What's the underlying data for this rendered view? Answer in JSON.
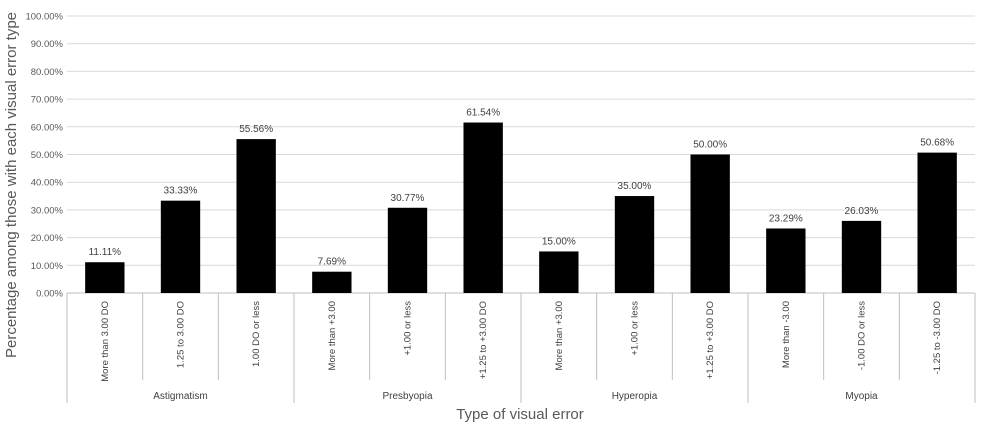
{
  "chart_data": {
    "type": "bar",
    "title": "",
    "xlabel": "Type of visual error",
    "ylabel": "Percentage among those with each visual error type",
    "ylim": [
      0,
      100
    ],
    "yticks": [
      "0.00%",
      "10.00%",
      "20.00%",
      "30.00%",
      "40.00%",
      "50.00%",
      "60.00%",
      "70.00%",
      "80.00%",
      "90.00%",
      "100.00%"
    ],
    "grid": true,
    "bar_color": "#000000",
    "groups": [
      {
        "label": "Astigmatism",
        "categories": [
          "More than 3.00 DO",
          "1.25 to 3.00 DO",
          "1.00 DO or less"
        ],
        "values": [
          11.11,
          33.33,
          55.56
        ],
        "labels": [
          "11.11%",
          "33.33%",
          "55.56%"
        ]
      },
      {
        "label": "Presbyopia",
        "categories": [
          "More than +3.00",
          "+1.00 or less",
          "+1.25 to +3.00 DO"
        ],
        "values": [
          7.69,
          30.77,
          61.54
        ],
        "labels": [
          "7.69%",
          "30.77%",
          "61.54%"
        ]
      },
      {
        "label": "Hyperopia",
        "categories": [
          "More than +3.00",
          "+1.00 or less",
          "+1.25 to +3.00 DO"
        ],
        "values": [
          15.0,
          35.0,
          50.0
        ],
        "labels": [
          "15.00%",
          "35.00%",
          "50.00%"
        ]
      },
      {
        "label": "Myopia",
        "categories": [
          "More than -3.00",
          "-1.00 DO or less",
          "-1.25 to -3.00 DO"
        ],
        "values": [
          23.29,
          26.03,
          50.68
        ],
        "labels": [
          "23.29%",
          "26.03%",
          "50.68%"
        ]
      }
    ]
  }
}
